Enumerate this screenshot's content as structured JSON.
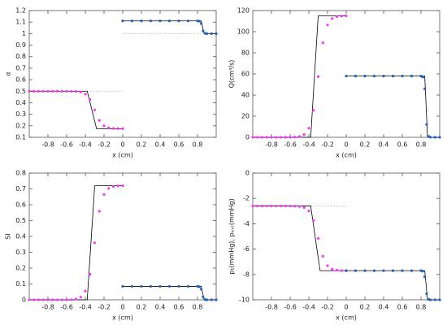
{
  "chart_data": [
    {
      "type": "line",
      "ylabel": "α",
      "xlabel": "x (cm)",
      "xlim": [
        -1,
        1
      ],
      "xticks": [
        -0.8,
        -0.6,
        -0.4,
        -0.2,
        0,
        0.2,
        0.4,
        0.6,
        0.8
      ],
      "ylim": [
        0.1,
        1.2
      ],
      "yticks": [
        0.1,
        0.2,
        0.3,
        0.4,
        0.5,
        0.6,
        0.7,
        0.8,
        0.9,
        1,
        1.1,
        1.2
      ],
      "series": [
        {
          "style": "dotted",
          "color": "#bbbbbb",
          "x": [
            -0.38,
            0,
            0,
            0,
            0.85
          ],
          "values": [
            0.5,
            0.5,
            null,
            1.0,
            1.0
          ]
        },
        {
          "style": "line",
          "color": "#000000",
          "x": [
            -1,
            -0.38,
            -0.28,
            0,
            0,
            0,
            0.84,
            0.87,
            1
          ],
          "values": [
            0.5,
            0.5,
            0.175,
            0.175,
            null,
            1.11,
            1.11,
            1.0,
            1.0
          ]
        },
        {
          "style": "points",
          "color": "#ff33ff",
          "x": [
            -1,
            -0.95,
            -0.9,
            -0.85,
            -0.8,
            -0.75,
            -0.7,
            -0.65,
            -0.6,
            -0.55,
            -0.5,
            -0.45,
            -0.4,
            -0.35,
            -0.3,
            -0.25,
            -0.2,
            -0.15,
            -0.1,
            -0.05,
            0
          ],
          "values": [
            0.5,
            0.5,
            0.5,
            0.5,
            0.5,
            0.5,
            0.5,
            0.5,
            0.5,
            0.499,
            0.498,
            0.493,
            0.475,
            0.428,
            0.338,
            0.247,
            0.2,
            0.183,
            0.177,
            0.176,
            0.175
          ]
        },
        {
          "style": "points",
          "color": "#1f5fbf",
          "x": [
            0,
            0.1,
            0.2,
            0.3,
            0.4,
            0.5,
            0.6,
            0.7,
            0.8,
            0.82,
            0.84,
            0.86,
            0.88,
            0.9,
            0.95,
            1
          ],
          "values": [
            1.11,
            1.11,
            1.11,
            1.11,
            1.11,
            1.11,
            1.11,
            1.11,
            1.11,
            1.108,
            1.087,
            1.023,
            1.002,
            1.0,
            1.0,
            1.0
          ]
        }
      ]
    },
    {
      "type": "line",
      "ylabel": "Q(cm³/s)",
      "xlabel": "x (cm)",
      "xlim": [
        -1,
        1
      ],
      "xticks": [
        -0.8,
        -0.6,
        -0.4,
        -0.2,
        0,
        0.2,
        0.4,
        0.6,
        0.8
      ],
      "ylim": [
        0,
        120
      ],
      "yticks": [
        0,
        20,
        40,
        60,
        80,
        100,
        120
      ],
      "series": [
        {
          "style": "line",
          "color": "#000000",
          "x": [
            -1,
            -0.38,
            -0.3,
            0,
            0,
            0,
            0.84,
            0.87,
            1
          ],
          "values": [
            0,
            0,
            115,
            115,
            null,
            58,
            58,
            0,
            0
          ]
        },
        {
          "style": "points",
          "color": "#ff33ff",
          "x": [
            -1,
            -0.95,
            -0.9,
            -0.85,
            -0.8,
            -0.75,
            -0.7,
            -0.65,
            -0.6,
            -0.55,
            -0.5,
            -0.45,
            -0.4,
            -0.35,
            -0.3,
            -0.25,
            -0.2,
            -0.15,
            -0.1,
            -0.05,
            0
          ],
          "values": [
            0,
            0,
            0,
            0,
            0,
            0,
            0,
            0,
            0,
            0.2,
            0.8,
            2.6,
            8.7,
            25.6,
            57.5,
            89.4,
            106.3,
            112.4,
            114.2,
            114.8,
            115
          ]
        },
        {
          "style": "points",
          "color": "#1f5fbf",
          "x": [
            0,
            0.1,
            0.2,
            0.3,
            0.4,
            0.5,
            0.6,
            0.7,
            0.8,
            0.82,
            0.84,
            0.86,
            0.88,
            0.9,
            0.95,
            1
          ],
          "values": [
            58,
            58,
            58,
            58,
            58,
            58,
            58,
            58,
            58,
            57,
            45.9,
            12.1,
            1.0,
            0.1,
            0,
            0
          ]
        }
      ]
    },
    {
      "type": "line",
      "ylabel": "SI",
      "xlabel": "x (cm)",
      "xlim": [
        -1,
        1
      ],
      "xticks": [
        -0.8,
        -0.6,
        -0.4,
        -0.2,
        0,
        0.2,
        0.4,
        0.6,
        0.8
      ],
      "ylim": [
        0,
        0.8
      ],
      "yticks": [
        0,
        0.1,
        0.2,
        0.3,
        0.4,
        0.5,
        0.6,
        0.7,
        0.8
      ],
      "series": [
        {
          "style": "line",
          "color": "#000000",
          "x": [
            -1,
            -0.38,
            -0.3,
            0,
            0,
            0,
            0.84,
            0.87,
            1
          ],
          "values": [
            0,
            0,
            0.72,
            0.72,
            null,
            0.085,
            0.085,
            0,
            0
          ]
        },
        {
          "style": "points",
          "color": "#ff33ff",
          "x": [
            -1,
            -0.95,
            -0.9,
            -0.85,
            -0.8,
            -0.75,
            -0.7,
            -0.65,
            -0.6,
            -0.55,
            -0.5,
            -0.45,
            -0.4,
            -0.35,
            -0.3,
            -0.25,
            -0.2,
            -0.15,
            -0.1,
            -0.05,
            0
          ],
          "values": [
            0,
            0,
            0,
            0,
            0,
            0,
            0,
            0,
            0,
            0.001,
            0.005,
            0.017,
            0.055,
            0.161,
            0.36,
            0.559,
            0.665,
            0.703,
            0.715,
            0.719,
            0.72
          ]
        },
        {
          "style": "points",
          "color": "#1f5fbf",
          "x": [
            0,
            0.1,
            0.2,
            0.3,
            0.4,
            0.5,
            0.6,
            0.7,
            0.8,
            0.82,
            0.84,
            0.86,
            0.88,
            0.9,
            0.95,
            1
          ],
          "values": [
            0.085,
            0.085,
            0.085,
            0.085,
            0.085,
            0.085,
            0.085,
            0.085,
            0.085,
            0.083,
            0.067,
            0.018,
            0.002,
            0,
            0,
            0
          ]
        }
      ]
    },
    {
      "type": "line",
      "ylabel": "p₁(mmHg), pₑₓₜ(mmHg)",
      "xlabel": "x (cm)",
      "xlim": [
        -1,
        1
      ],
      "xticks": [
        -0.8,
        -0.6,
        -0.4,
        -0.2,
        0,
        0.2,
        0.4,
        0.6,
        0.8
      ],
      "ylim": [
        -10,
        0
      ],
      "yticks": [
        -10,
        -8,
        -6,
        -4,
        -2,
        0
      ],
      "series": [
        {
          "style": "dotted",
          "color": "#bbbbbb",
          "x": [
            -0.38,
            0
          ],
          "values": [
            -2.6,
            -2.6
          ]
        },
        {
          "style": "line",
          "color": "#000000",
          "x": [
            -1,
            -0.38,
            -0.28,
            0,
            0,
            0,
            0.84,
            0.87,
            1
          ],
          "values": [
            -2.6,
            -2.6,
            -7.7,
            -7.7,
            null,
            -7.7,
            -7.7,
            -10,
            -10
          ]
        },
        {
          "style": "points",
          "color": "#ff33ff",
          "x": [
            -1,
            -0.95,
            -0.9,
            -0.85,
            -0.8,
            -0.75,
            -0.7,
            -0.65,
            -0.6,
            -0.55,
            -0.5,
            -0.45,
            -0.4,
            -0.35,
            -0.3,
            -0.25,
            -0.2,
            -0.15,
            -0.1,
            -0.05,
            0
          ],
          "values": [
            -2.6,
            -2.6,
            -2.6,
            -2.6,
            -2.6,
            -2.6,
            -2.6,
            -2.6,
            -2.6,
            -2.61,
            -2.64,
            -2.72,
            -2.99,
            -3.74,
            -5.15,
            -6.56,
            -7.31,
            -7.58,
            -7.66,
            -7.69,
            -7.7
          ]
        },
        {
          "style": "points",
          "color": "#1f5fbf",
          "x": [
            0,
            0.1,
            0.2,
            0.3,
            0.4,
            0.5,
            0.6,
            0.7,
            0.8,
            0.82,
            0.84,
            0.86,
            0.88,
            0.9,
            0.95,
            1
          ],
          "values": [
            -7.7,
            -7.7,
            -7.7,
            -7.7,
            -7.7,
            -7.7,
            -7.7,
            -7.7,
            -7.7,
            -7.74,
            -8.18,
            -9.52,
            -9.96,
            -10,
            -10,
            -10
          ]
        }
      ]
    }
  ]
}
